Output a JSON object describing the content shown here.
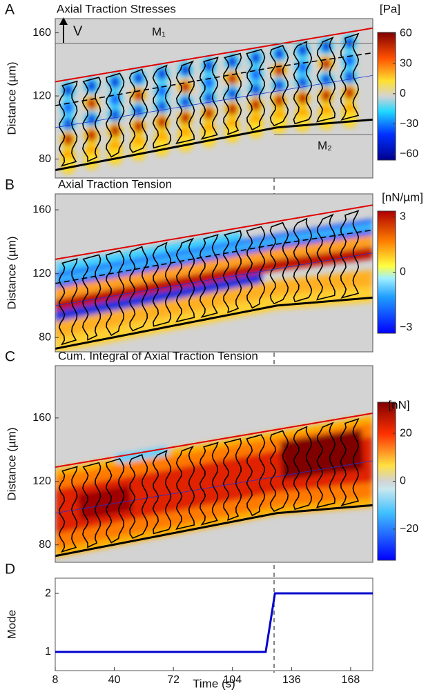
{
  "chart_data": [
    {
      "type": "heatmap",
      "panel": "A",
      "title": "Axial  Traction Stresses",
      "ylabel": "Distance (µm)",
      "ylim": [
        68,
        169
      ],
      "yticks": [
        80,
        120,
        160
      ],
      "annotations": [
        "V",
        "M₁",
        "M₂"
      ],
      "colorbar": {
        "label": "[Pa]",
        "clim": [
          -66,
          61
        ],
        "ticks": [
          60,
          30,
          0,
          {
            "value": -30,
            "label": "−30"
          },
          {
            "value": -60,
            "label": "−60"
          }
        ]
      }
    },
    {
      "type": "heatmap",
      "panel": "B",
      "title": "Axial Traction Tension",
      "ylabel": "Distance (µm)",
      "ylim": [
        71,
        170
      ],
      "yticks": [
        80,
        120,
        160
      ],
      "colorbar": {
        "label": "[nN/µm]",
        "clim": [
          -3.3,
          3.3
        ],
        "ticks": [
          3,
          0,
          {
            "value": -3,
            "label": "−3"
          }
        ]
      }
    },
    {
      "type": "heatmap",
      "panel": "C",
      "title": "Cum. Integral of Axial Traction Tension",
      "ylabel": "Distance (µm)",
      "ylim": [
        69,
        193
      ],
      "yticks": [
        80,
        120,
        160
      ],
      "colorbar": {
        "label": "[nN]",
        "clim": [
          -33,
          33
        ],
        "ticks": [
          20,
          0,
          {
            "value": -20,
            "label": "−20"
          }
        ]
      }
    },
    {
      "type": "line",
      "panel": "D",
      "xlabel": "Time (s)",
      "ylabel": "Mode",
      "xlim": [
        8,
        180
      ],
      "xticks": [
        8,
        40,
        72,
        104,
        136,
        168
      ],
      "ylim": [
        0.68,
        2.26
      ],
      "yticks": [
        1,
        2
      ],
      "series": [
        {
          "color": "#0000cc",
          "x": [
            8,
            122,
            127,
            180
          ],
          "values": [
            1,
            1,
            2,
            2
          ]
        }
      ]
    }
  ]
}
